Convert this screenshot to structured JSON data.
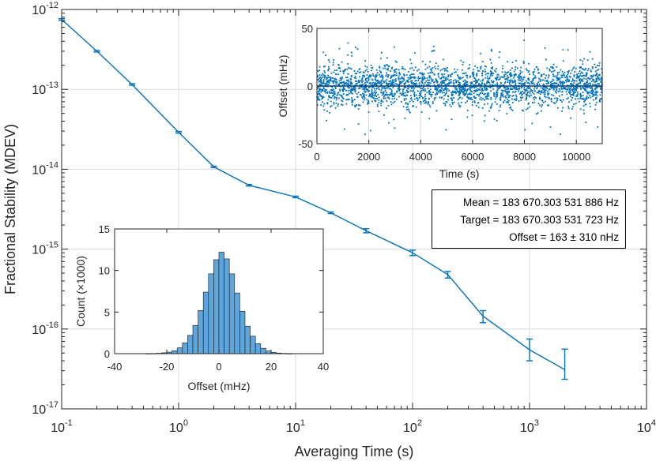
{
  "chart_data": [
    {
      "type": "line",
      "xlabel": "Averaging Time (s)",
      "ylabel": "Fractional Stability (MDEV)",
      "xscale": "log",
      "yscale": "log",
      "xlim": [
        0.1,
        10000
      ],
      "ylim": [
        1e-17,
        1e-12
      ],
      "grid": true,
      "x_tick_labels": [
        {
          "base": "10",
          "exp": "-1"
        },
        {
          "base": "10",
          "exp": "0"
        },
        {
          "base": "10",
          "exp": "1"
        },
        {
          "base": "10",
          "exp": "2"
        },
        {
          "base": "10",
          "exp": "3"
        },
        {
          "base": "10",
          "exp": "4"
        }
      ],
      "y_tick_labels": [
        {
          "base": "10",
          "exp": "-12"
        },
        {
          "base": "10",
          "exp": "-13"
        },
        {
          "base": "10",
          "exp": "-14"
        },
        {
          "base": "10",
          "exp": "-15"
        },
        {
          "base": "10",
          "exp": "-16"
        },
        {
          "base": "10",
          "exp": "-17"
        }
      ],
      "color": "#0072BD",
      "series": [
        {
          "x": [
            0.1,
            0.2,
            0.4,
            1,
            2,
            4,
            10,
            20,
            40,
            100,
            200,
            400,
            1000,
            2000
          ],
          "y": [
            7.5e-13,
            3e-13,
            1.15e-13,
            2.9e-14,
            1.07e-14,
            6.3e-15,
            4.5e-15,
            2.85e-15,
            1.7e-15,
            9e-16,
            4.8e-16,
            1.45e-16,
            5.5e-17,
            3.1e-17
          ],
          "y_err_low": [
            0,
            0,
            0,
            0,
            0,
            0,
            0,
            0,
            1e-16,
            7e-17,
            4.5e-17,
            2.5e-17,
            1.5e-17,
            7.5e-18
          ],
          "y_err_high": [
            0,
            0,
            0,
            0,
            0,
            0,
            0,
            0,
            1e-16,
            7e-17,
            4.5e-17,
            2.5e-17,
            2e-17,
            2.5e-17
          ]
        }
      ],
      "annotation": {
        "mean": "Mean = 183 670.303 531 886 Hz",
        "target": "Target = 183 670.303 531 723 Hz",
        "offset": "Offset = 163 ± 310 nHz"
      }
    },
    {
      "type": "scatter",
      "xlabel": "Time (s)",
      "ylabel": "Offset (mHz)",
      "xlim": [
        0,
        11000
      ],
      "ylim": [
        -50,
        50
      ],
      "grid": true,
      "x_ticks": [
        0,
        2000,
        4000,
        6000,
        8000,
        10000
      ],
      "x_tick_labels": [
        "0",
        "2000",
        "4000",
        "6000",
        "8000",
        "10000"
      ],
      "y_ticks": [
        -50,
        0,
        50
      ],
      "y_tick_labels": [
        "-50",
        "0",
        "50"
      ],
      "color": "#0072BD",
      "mean_line": 0,
      "distribution": "gaussian noise, sigma about 10 mHz, mostly within ±25 mHz, occasional outliers to ±40 mHz"
    },
    {
      "type": "bar",
      "xlabel": "Offset (mHz)",
      "ylabel": "Count (×1000)",
      "xlim": [
        -40,
        40
      ],
      "ylim": [
        0,
        15
      ],
      "x_ticks": [
        -40,
        -20,
        0,
        20,
        40
      ],
      "x_tick_labels": [
        "-40",
        "-20",
        "0",
        "20",
        "40"
      ],
      "y_ticks": [
        0,
        5,
        10,
        15
      ],
      "y_tick_labels": [
        "0",
        "5",
        "10",
        "15"
      ],
      "bin_width": 2,
      "bin_centers": [
        -39,
        -37,
        -35,
        -33,
        -31,
        -29,
        -27,
        -25,
        -23,
        -21,
        -19,
        -17,
        -15,
        -13,
        -11,
        -9,
        -7,
        -5,
        -3,
        -1,
        1,
        3,
        5,
        7,
        9,
        11,
        13,
        15,
        17,
        19,
        21,
        23,
        25,
        27,
        29,
        31,
        33,
        35,
        37,
        39
      ],
      "values": [
        0,
        0,
        0,
        0,
        0,
        0,
        0.01,
        0.02,
        0.05,
        0.1,
        0.18,
        0.35,
        0.7,
        1.3,
        2.2,
        3.4,
        5.2,
        7.4,
        9.6,
        11.3,
        12.2,
        11.4,
        9.6,
        7.3,
        5.1,
        3.3,
        2.1,
        1.2,
        0.65,
        0.32,
        0.15,
        0.07,
        0.03,
        0.01,
        0,
        0,
        0,
        0,
        0,
        0
      ],
      "color": "#5DA5DA"
    }
  ]
}
